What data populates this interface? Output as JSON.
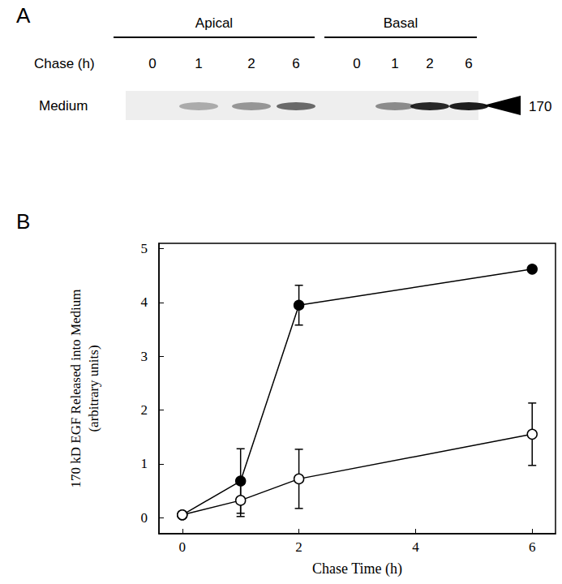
{
  "panel_a": {
    "label": "A",
    "row_label": "Chase (h)",
    "lane_label": "Medium",
    "marker": "170",
    "groups": [
      {
        "name": "Apical",
        "chase": [
          "0",
          "1",
          "2",
          "6"
        ],
        "band_intensity": [
          0,
          0.3,
          0.4,
          0.6
        ]
      },
      {
        "name": "Basal",
        "chase": [
          "0",
          "1",
          "2",
          "6"
        ],
        "band_intensity": [
          0,
          0.45,
          0.9,
          0.95
        ]
      }
    ]
  },
  "panel_b_label": "B",
  "chart_data": {
    "type": "line",
    "xlabel": "Chase Time (h)",
    "ylabel": [
      "170 kD EGF Released into Medium",
      "(arbitrary units)"
    ],
    "xlim": [
      -0.4,
      6.4
    ],
    "xticks": [
      0,
      2,
      4,
      6
    ],
    "ylim": [
      -0.3,
      5.1
    ],
    "yticks": [
      0,
      1,
      2,
      3,
      4,
      5
    ],
    "grid": false,
    "series": [
      {
        "color": "#000000",
        "marker": "filled",
        "line_style": "solid",
        "x": [
          0,
          1,
          2,
          6
        ],
        "values": [
          0.05,
          0.68,
          3.95,
          4.62
        ],
        "errors": [
          0.05,
          0.6,
          0.37,
          0.05
        ]
      },
      {
        "color": "#000000",
        "marker": "open",
        "line_style": "solid",
        "x": [
          0,
          1,
          2,
          6
        ],
        "values": [
          0.05,
          0.32,
          0.72,
          1.55
        ],
        "errors": [
          0.05,
          0.3,
          0.55,
          0.58
        ]
      }
    ]
  }
}
